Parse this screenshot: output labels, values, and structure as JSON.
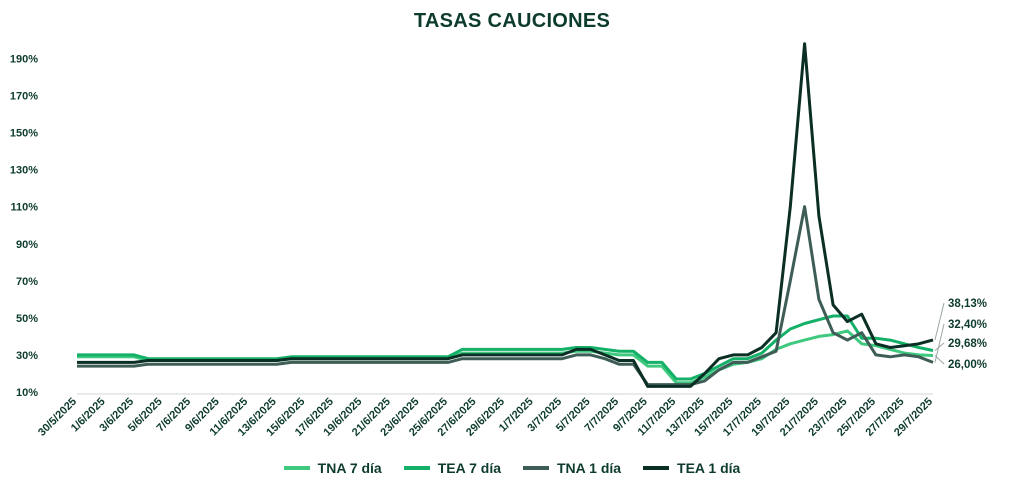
{
  "chart_data": {
    "type": "line",
    "title": "TASAS CAUCIONES",
    "ylim": [
      10,
      200
    ],
    "y_ticks": [
      "10%",
      "30%",
      "50%",
      "70%",
      "90%",
      "110%",
      "130%",
      "150%",
      "170%",
      "190%"
    ],
    "y_tick_values": [
      10,
      30,
      50,
      70,
      90,
      110,
      130,
      150,
      170,
      190
    ],
    "x": [
      "30/5/2025",
      "31/5/2025",
      "1/6/2025",
      "2/6/2025",
      "3/6/2025",
      "4/6/2025",
      "5/6/2025",
      "6/6/2025",
      "7/6/2025",
      "8/6/2025",
      "9/6/2025",
      "10/6/2025",
      "11/6/2025",
      "12/6/2025",
      "13/6/2025",
      "14/6/2025",
      "15/6/2025",
      "16/6/2025",
      "17/6/2025",
      "18/6/2025",
      "19/6/2025",
      "20/6/2025",
      "21/6/2025",
      "22/6/2025",
      "23/6/2025",
      "24/6/2025",
      "25/6/2025",
      "26/6/2025",
      "27/6/2025",
      "28/6/2025",
      "29/6/2025",
      "30/6/2025",
      "1/7/2025",
      "2/7/2025",
      "3/7/2025",
      "4/7/2025",
      "5/7/2025",
      "6/7/2025",
      "7/7/2025",
      "8/7/2025",
      "9/7/2025",
      "10/7/2025",
      "11/7/2025",
      "12/7/2025",
      "13/7/2025",
      "14/7/2025",
      "15/7/2025",
      "16/7/2025",
      "17/7/2025",
      "18/7/2025",
      "19/7/2025",
      "20/7/2025",
      "21/7/2025",
      "22/7/2025",
      "23/7/2025",
      "24/7/2025",
      "25/7/2025",
      "26/7/2025",
      "27/7/2025",
      "28/7/2025",
      "29/7/2025"
    ],
    "x_tick_labels": [
      "30/5/2025",
      "1/6/2025",
      "3/6/2025",
      "5/6/2025",
      "7/6/2025",
      "9/6/2025",
      "11/6/2025",
      "13/6/2025",
      "15/6/2025",
      "17/6/2025",
      "19/6/2025",
      "21/6/2025",
      "23/6/2025",
      "25/6/2025",
      "27/6/2025",
      "29/6/2025",
      "1/7/2025",
      "3/7/2025",
      "5/7/2025",
      "7/7/2025",
      "9/7/2025",
      "11/7/2025",
      "13/7/2025",
      "15/7/2025",
      "17/7/2025",
      "19/7/2025",
      "21/7/2025",
      "23/7/2025",
      "25/7/2025",
      "27/7/2025",
      "29/7/2025"
    ],
    "series": [
      {
        "name": "TNA 7 día",
        "color": "#3ec97f",
        "values": [
          29,
          29,
          29,
          29,
          29,
          27,
          27,
          27,
          27,
          27,
          27,
          27,
          27,
          27,
          27,
          28,
          28,
          28,
          28,
          28,
          28,
          28,
          28,
          28,
          28,
          28,
          28,
          31,
          31,
          31,
          31,
          31,
          31,
          31,
          31,
          32,
          32,
          31,
          30,
          30,
          24,
          24,
          15,
          15,
          18,
          22,
          25,
          26,
          28,
          33,
          36,
          38,
          40,
          41,
          43,
          36,
          35,
          33,
          31,
          30,
          29.68
        ]
      },
      {
        "name": "TEA 7 día",
        "color": "#13b067",
        "values": [
          30,
          30,
          30,
          30,
          30,
          28,
          28,
          28,
          28,
          28,
          28,
          28,
          28,
          28,
          28,
          29,
          29,
          29,
          29,
          29,
          29,
          29,
          29,
          29,
          29,
          29,
          29,
          33,
          33,
          33,
          33,
          33,
          33,
          33,
          33,
          34,
          34,
          33,
          32,
          32,
          26,
          26,
          17,
          17,
          20,
          24,
          28,
          28,
          31,
          38,
          44,
          47,
          49,
          51,
          51,
          39,
          39,
          38,
          36,
          34,
          32.4
        ]
      },
      {
        "name": "TNA 1 día",
        "color": "#3e5d56",
        "values": [
          24,
          24,
          24,
          24,
          24,
          25,
          25,
          25,
          25,
          25,
          25,
          25,
          25,
          25,
          25,
          26,
          26,
          26,
          26,
          26,
          26,
          26,
          26,
          26,
          26,
          26,
          26,
          28,
          28,
          28,
          28,
          28,
          28,
          28,
          28,
          30,
          30,
          28,
          25,
          25,
          14,
          14,
          14,
          14,
          16,
          22,
          26,
          26,
          29,
          32,
          70,
          110,
          60,
          42,
          38,
          42,
          30,
          29,
          30,
          29,
          26.0
        ]
      },
      {
        "name": "TEA 1 día",
        "color": "#0b2e25",
        "values": [
          26,
          26,
          26,
          26,
          26,
          27,
          27,
          27,
          27,
          27,
          27,
          27,
          27,
          27,
          27,
          28,
          28,
          28,
          28,
          28,
          28,
          28,
          28,
          28,
          28,
          28,
          28,
          30,
          30,
          30,
          30,
          30,
          30,
          30,
          30,
          33,
          33,
          30,
          27,
          27,
          13,
          13,
          13,
          13,
          20,
          28,
          30,
          30,
          34,
          42,
          110,
          198,
          105,
          57,
          48,
          52,
          36,
          34,
          35,
          36,
          38.13
        ]
      }
    ],
    "end_labels": [
      "38,13%",
      "32,40%",
      "29,68%",
      "26,00%"
    ],
    "legend_position": "bottom",
    "grid": false
  }
}
